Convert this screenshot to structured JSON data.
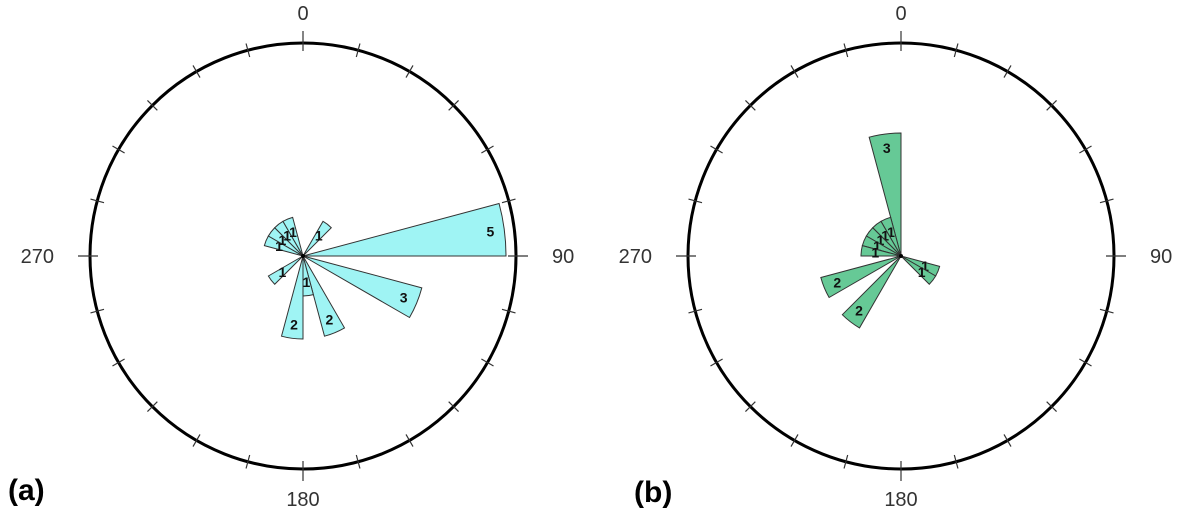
{
  "chart_data": [
    {
      "type": "rose",
      "panel_label": "(a)",
      "angle_labels": [
        "0",
        "90",
        "180",
        "270"
      ],
      "bin_width_deg": 15,
      "max_count": 5,
      "fill": "#9ff4f4",
      "stroke": "#333333",
      "bins": [
        {
          "start": 30,
          "end": 45,
          "count": 1
        },
        {
          "start": 75,
          "end": 90,
          "count": 5
        },
        {
          "start": 105,
          "end": 120,
          "count": 3
        },
        {
          "start": 150,
          "end": 165,
          "count": 2
        },
        {
          "start": 165,
          "end": 180,
          "count": 1
        },
        {
          "start": 180,
          "end": 195,
          "count": 2
        },
        {
          "start": 225,
          "end": 240,
          "count": 1
        },
        {
          "start": 285,
          "end": 300,
          "count": 1
        },
        {
          "start": 300,
          "end": 315,
          "count": 1
        },
        {
          "start": 315,
          "end": 330,
          "count": 1
        },
        {
          "start": 330,
          "end": 345,
          "count": 1
        }
      ]
    },
    {
      "type": "rose",
      "panel_label": "(b)",
      "angle_labels": [
        "0",
        "90",
        "180",
        "270"
      ],
      "bin_width_deg": 15,
      "max_count": 5,
      "fill": "#66c996",
      "stroke": "#333333",
      "bins": [
        {
          "start": 345,
          "end": 360,
          "count": 3
        },
        {
          "start": 330,
          "end": 345,
          "count": 1
        },
        {
          "start": 315,
          "end": 330,
          "count": 1
        },
        {
          "start": 300,
          "end": 315,
          "count": 1
        },
        {
          "start": 285,
          "end": 300,
          "count": 1
        },
        {
          "start": 270,
          "end": 285,
          "count": 1
        },
        {
          "start": 240,
          "end": 255,
          "count": 2
        },
        {
          "start": 210,
          "end": 225,
          "count": 2
        },
        {
          "start": 105,
          "end": 120,
          "count": 1
        },
        {
          "start": 120,
          "end": 135,
          "count": 1
        }
      ]
    }
  ]
}
